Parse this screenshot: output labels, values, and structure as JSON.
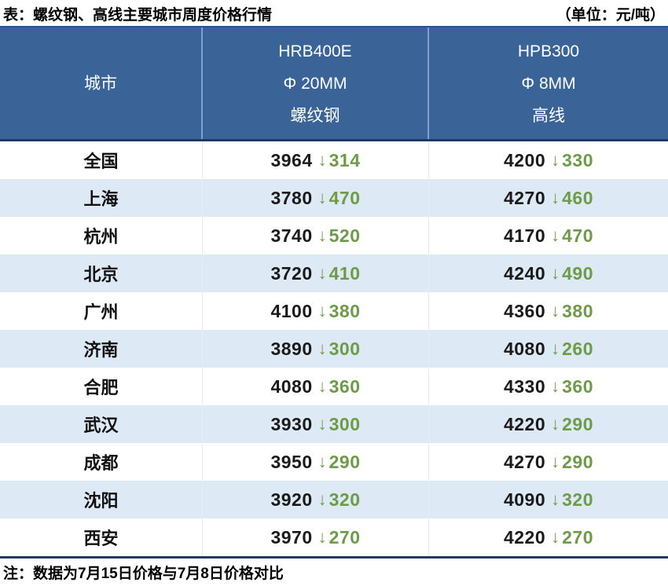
{
  "colors": {
    "header_bg": "#3A6397",
    "header_separator": "#7FA1CD",
    "dark_rule": "#1F3864",
    "row_alt_bg": "#DDE9F5",
    "down_green": "#6E9B47",
    "price_text": "#1A1A1A"
  },
  "chart_data": {
    "type": "table",
    "title": "表：螺纹钢、高线主要城市周度价格行情",
    "unit": "（单位：元/吨）",
    "note": "注：数据为7月15日价格与7月8日价格对比",
    "header": {
      "city": "城市",
      "rebar_lines": [
        "HRB400E",
        "Φ 20MM",
        "螺纹钢"
      ],
      "wire_lines": [
        "HPB300",
        "Φ 8MM",
        "高线"
      ]
    },
    "down_arrow": "↓",
    "change_direction": "down",
    "rows": [
      {
        "city": "全国",
        "rebar_price": 3964,
        "rebar_change": 314,
        "wire_price": 4200,
        "wire_change": 330
      },
      {
        "city": "上海",
        "rebar_price": 3780,
        "rebar_change": 470,
        "wire_price": 4270,
        "wire_change": 460
      },
      {
        "city": "杭州",
        "rebar_price": 3740,
        "rebar_change": 520,
        "wire_price": 4170,
        "wire_change": 470
      },
      {
        "city": "北京",
        "rebar_price": 3720,
        "rebar_change": 410,
        "wire_price": 4240,
        "wire_change": 490
      },
      {
        "city": "广州",
        "rebar_price": 4100,
        "rebar_change": 380,
        "wire_price": 4360,
        "wire_change": 380
      },
      {
        "city": "济南",
        "rebar_price": 3890,
        "rebar_change": 300,
        "wire_price": 4080,
        "wire_change": 260
      },
      {
        "city": "合肥",
        "rebar_price": 4080,
        "rebar_change": 360,
        "wire_price": 4330,
        "wire_change": 360
      },
      {
        "city": "武汉",
        "rebar_price": 3930,
        "rebar_change": 300,
        "wire_price": 4220,
        "wire_change": 290
      },
      {
        "city": "成都",
        "rebar_price": 3950,
        "rebar_change": 290,
        "wire_price": 4270,
        "wire_change": 290
      },
      {
        "city": "沈阳",
        "rebar_price": 3920,
        "rebar_change": 320,
        "wire_price": 4090,
        "wire_change": 320
      },
      {
        "city": "西安",
        "rebar_price": 3970,
        "rebar_change": 270,
        "wire_price": 4220,
        "wire_change": 270
      }
    ]
  }
}
